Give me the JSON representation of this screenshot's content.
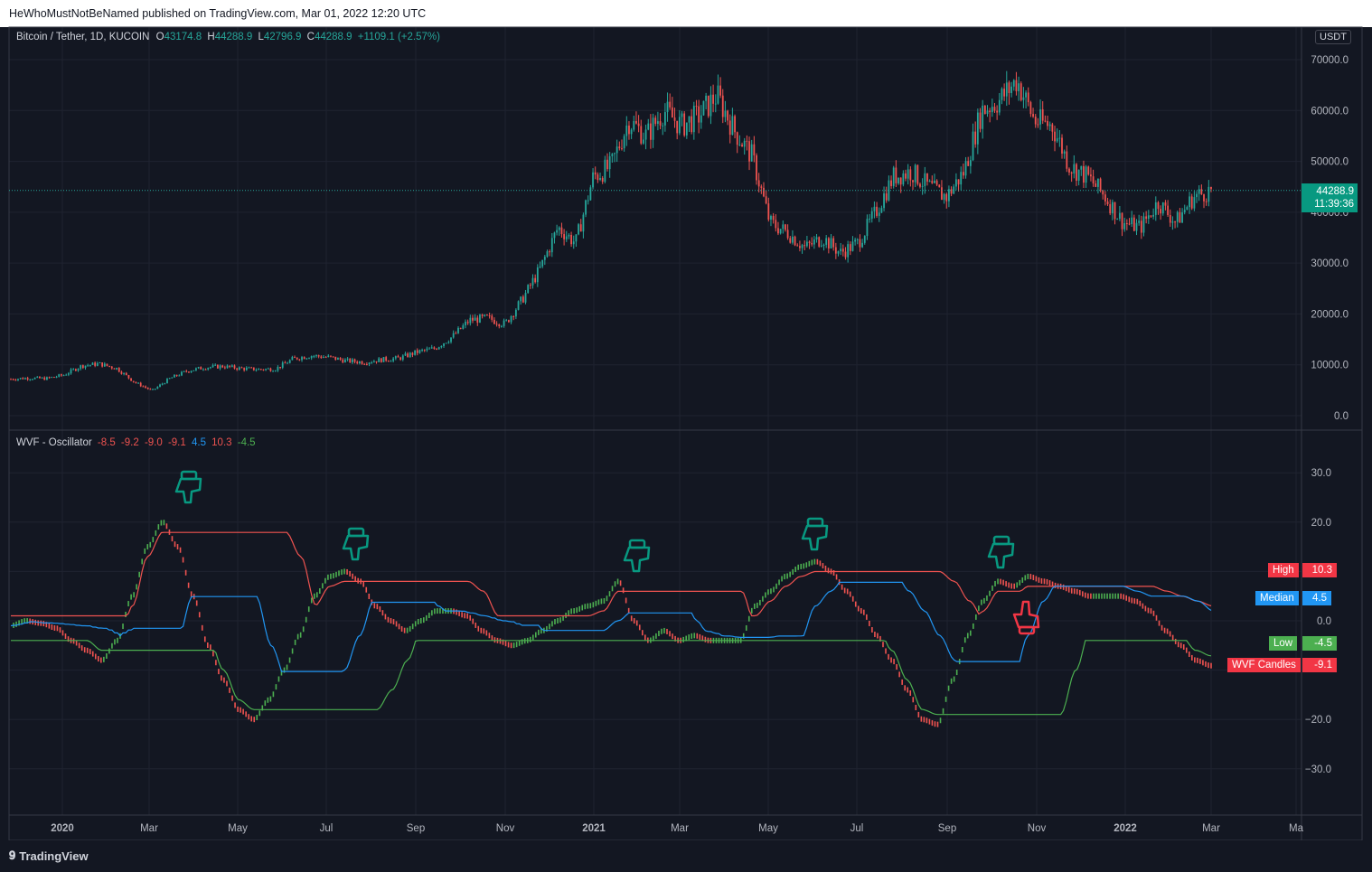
{
  "publisher_line": "HeWhoMustNotBeNamed published on TradingView.com, Mar 01, 2022 12:20 UTC",
  "brand": "TradingView",
  "colors": {
    "bg": "#131722",
    "up": "#26a69a",
    "down": "#ef5350",
    "grid": "#1f2330",
    "teal": "#089981",
    "red": "#f23645",
    "blue": "#2196f3",
    "green": "#4caf50"
  },
  "price_pane": {
    "symbol": "Bitcoin / Tether, 1D, KUCOIN",
    "ohlc": {
      "o_label": "O",
      "o": "43174.8",
      "h_label": "H",
      "h": "44288.9",
      "l_label": "L",
      "l": "42796.9",
      "c_label": "C",
      "c": "44288.9",
      "change": "+1109.1 (+2.57%)"
    },
    "currency_button": "USDT",
    "last_price": "44288.9",
    "countdown": "11:39:36",
    "y_ticks": [
      "70000.0",
      "60000.0",
      "50000.0",
      "40000.0",
      "30000.0",
      "20000.0",
      "10000.0",
      "0.0"
    ]
  },
  "osc_pane": {
    "title": "WVF - Oscillator",
    "values": [
      {
        "v": "-8.5",
        "color": "#ef5350"
      },
      {
        "v": "-9.2",
        "color": "#ef5350"
      },
      {
        "v": "-9.0",
        "color": "#ef5350"
      },
      {
        "v": "-9.1",
        "color": "#ef5350"
      },
      {
        "v": "4.5",
        "color": "#2196f3"
      },
      {
        "v": "10.3",
        "color": "#ef5350"
      },
      {
        "v": "-4.5",
        "color": "#4caf50"
      }
    ],
    "y_ticks": [
      "30.0",
      "20.0",
      "0.0",
      "−20.0",
      "−30.0"
    ],
    "tags": [
      {
        "name": "High",
        "value": "10.3",
        "color": "#f23645"
      },
      {
        "name": "Median",
        "value": "4.5",
        "color": "#2196f3"
      },
      {
        "name": "Low",
        "value": "-4.5",
        "color": "#4caf50"
      },
      {
        "name": "WVF Candles",
        "value": "-9.1",
        "color": "#f23645"
      }
    ]
  },
  "x_axis": {
    "labels": [
      "2020",
      "Mar",
      "May",
      "Jul",
      "Sep",
      "Nov",
      "2021",
      "Mar",
      "May",
      "Jul",
      "Sep",
      "Nov",
      "2022",
      "Mar",
      "Ma"
    ],
    "bold": [
      "2020",
      "2021",
      "2022"
    ]
  },
  "chart_data": [
    {
      "type": "candlestick",
      "title": "Bitcoin / Tether, 1D, KUCOIN",
      "ylim": [
        0,
        72000
      ],
      "last": 44288.9,
      "x_months": [
        "2019-12",
        "2020-01",
        "2020-02",
        "2020-03",
        "2020-04",
        "2020-05",
        "2020-06",
        "2020-07",
        "2020-08",
        "2020-09",
        "2020-10",
        "2020-11",
        "2020-12",
        "2021-01",
        "2021-02",
        "2021-03",
        "2021-04",
        "2021-05",
        "2021-06",
        "2021-07",
        "2021-08",
        "2021-09",
        "2021-10",
        "2021-11",
        "2021-12",
        "2022-01",
        "2022-02"
      ],
      "close_path": [
        7200,
        7400,
        7300,
        8000,
        9800,
        10200,
        9300,
        6600,
        4900,
        7300,
        8800,
        9500,
        9700,
        9300,
        9100,
        9200,
        11200,
        11800,
        11500,
        10800,
        10500,
        11000,
        11300,
        12500,
        13200,
        15500,
        18800,
        19200,
        18000,
        23000,
        29000,
        37000,
        34000,
        47000,
        49000,
        58000,
        55000,
        60000,
        57000,
        59000,
        63000,
        56000,
        51000,
        38000,
        36000,
        33000,
        35000,
        32000,
        34000,
        40000,
        47000,
        48000,
        45000,
        43000,
        48000,
        60000,
        62000,
        66000,
        58000,
        57000,
        49000,
        47000,
        43000,
        38000,
        37000,
        42000,
        38000,
        43000,
        44288.9
      ]
    },
    {
      "type": "line",
      "title": "WVF - Oscillator",
      "ylim": [
        -33,
        33
      ],
      "series": [
        {
          "name": "WVF Candles",
          "color_up": "#4caf50",
          "color_down": "#ef5350",
          "values": [
            -1,
            0,
            -0.5,
            -1.5,
            -4,
            -6,
            -8,
            -4,
            5,
            15,
            20,
            15,
            5,
            -5,
            -12,
            -18,
            -20,
            -16,
            -10,
            -3,
            5,
            9,
            10,
            8,
            3,
            0,
            -2,
            0,
            2,
            2,
            1,
            -2,
            -4,
            -5,
            -4,
            -2,
            0,
            2,
            3,
            4,
            8,
            0,
            -4,
            -2,
            -4,
            -3,
            -4,
            -4,
            -4,
            3,
            6,
            9,
            11,
            12,
            10,
            6,
            2,
            -3,
            -8,
            -14,
            -20,
            -21,
            -12,
            -3,
            4,
            8,
            7,
            9,
            8,
            7,
            6,
            5,
            5,
            5,
            4,
            2,
            -2,
            -5,
            -8,
            -9.1
          ]
        },
        {
          "name": "High",
          "color": "#ef5350"
        },
        {
          "name": "Median",
          "color": "#2196f3"
        },
        {
          "name": "Low",
          "color": "#4caf50"
        }
      ]
    }
  ]
}
